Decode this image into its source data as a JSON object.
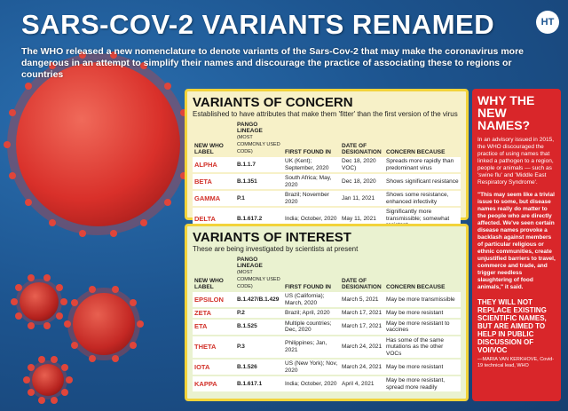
{
  "header": {
    "title": "SARS-COV-2 VARIANTS RENAMED",
    "logo": "HT",
    "subtitle": "The WHO released a new nomenclature to denote variants of the Sars-Cov-2 that may make the coronavirus more dangerous in an attempt to simplify their names and discourage the practice of associating these to regions or countries"
  },
  "columns": {
    "label": "NEW WHO LABEL",
    "lineage": "PANGO LINEAGE",
    "lineage_note": "(MOST COMMONLY USED CODE)",
    "found": "FIRST FOUND IN",
    "date": "DATE OF DESIGNATION",
    "concern": "CONCERN BECAUSE"
  },
  "concern": {
    "title": "VARIANTS OF CONCERN",
    "subtitle": "Established to have attributes that make them 'fitter' than the first version of the virus",
    "rows": [
      {
        "label": "ALPHA",
        "lineage": "B.1.1.7",
        "found": "UK (Kent); September, 2020",
        "date": "Dec 18, 2020 VOC)",
        "concern": "Spreads more rapidly than predominant virus"
      },
      {
        "label": "BETA",
        "lineage": "B.1.351",
        "found": "South Africa; May, 2020",
        "date": "Dec 18, 2020",
        "concern": "Shows significant resistance"
      },
      {
        "label": "GAMMA",
        "lineage": "P.1",
        "found": "Brazil; November 2020",
        "date": "Jan 11, 2021",
        "concern": "Shows some resistance, enhanced infectivity"
      },
      {
        "label": "DELTA",
        "lineage": "B.1.617.2",
        "found": "India; October, 2020",
        "date": "May 11, 2021",
        "concern": "Significantly more transmissible; somewhat resistant"
      }
    ]
  },
  "interest": {
    "title": "VARIANTS OF INTEREST",
    "subtitle": "These are being investigated by scientists at present",
    "rows": [
      {
        "label": "EPSILON",
        "lineage": "B.1.427/B.1.429",
        "found": "US (California); March, 2020",
        "date": "March 5, 2021",
        "concern": "May be more transmissible"
      },
      {
        "label": "ZETA",
        "lineage": "P.2",
        "found": "Brazil; April, 2020",
        "date": "March 17, 2021",
        "concern": "May be more resistant"
      },
      {
        "label": "ETA",
        "lineage": "B.1.525",
        "found": "Multiple countries; Dec, 2020",
        "date": "March 17, 2021",
        "concern": "May be more resistant to vaccines"
      },
      {
        "label": "THETA",
        "lineage": "P.3",
        "found": "Philippines; Jan, 2021",
        "date": "March 24, 2021",
        "concern": "Has some of the same mutations as the other VOCs"
      },
      {
        "label": "IOTA",
        "lineage": "B.1.526",
        "found": "US (New York); Nov, 2020",
        "date": "March 24, 2021",
        "concern": "May be more resistant"
      },
      {
        "label": "KAPPA",
        "lineage": "B.1.617.1",
        "found": "India; October, 2020",
        "date": "April 4, 2021",
        "concern": "May be more resistant, spread more readily"
      }
    ]
  },
  "side": {
    "title": "WHY THE NEW NAMES?",
    "p1": "In an advisory issued in 2015, the WHO discouraged the practice of using names that linked a pathogen to a region, people or animals — such as 'swine flu' and 'Middle East Respiratory Syndrome'.",
    "quote": "\"This may seem like a trivial issue to some, but disease names really do matter to the people who are directly affected. We've seen certain disease names provoke a backlash against members of particular religious or ethnic communities, create unjustified barriers to travel, commerce and trade, and trigger needless slaughtering of food animals,\" it said.",
    "callout": "THEY WILL NOT REPLACE EXISTING SCIENTIFIC NAMES, BUT ARE AIMED TO HELP IN PUBLIC DISCUSSION OF VOI/VOC",
    "attribution": "—MARIA VAN KERKHOVE, Covid-19 technical lead, WHO"
  }
}
